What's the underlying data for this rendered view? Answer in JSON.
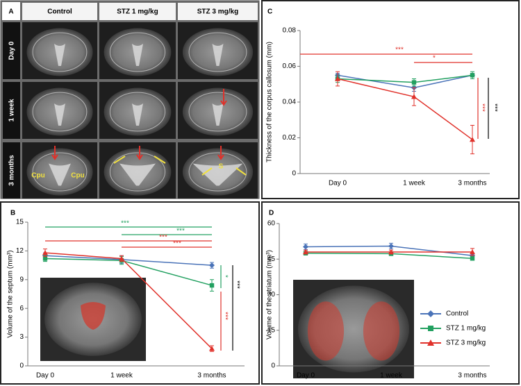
{
  "panel_a": {
    "panel": "A",
    "columns": [
      "Control",
      "STZ 1 mg/kg",
      "STZ 3 mg/kg"
    ],
    "rows": [
      "Day 0",
      "1 week",
      "3 months"
    ],
    "labels": [
      "Cpu",
      "Cpu",
      "S"
    ]
  },
  "chart_data": [
    {
      "panel": "C",
      "type": "line",
      "y_label": "Thickness of the corpus callosum (mm)",
      "categories": [
        "Day 0",
        "1 week",
        "3 months"
      ],
      "ylim": [
        0,
        0.08
      ],
      "yticks": [
        0,
        0.02,
        0.04,
        0.06,
        0.08
      ],
      "series": [
        {
          "name": "Control",
          "color": "#4a73b8",
          "marker": "diamond",
          "values": [
            0.055,
            0.048,
            0.055
          ],
          "errors": [
            0.001,
            0.002,
            0.001
          ]
        },
        {
          "name": "STZ 1 mg/kg",
          "color": "#22a060",
          "marker": "square",
          "values": [
            0.053,
            0.051,
            0.055
          ],
          "errors": [
            0.002,
            0.002,
            0.002
          ]
        },
        {
          "name": "STZ 3 mg/kg",
          "color": "#e0312a",
          "marker": "triangle",
          "values": [
            0.053,
            0.043,
            0.019
          ],
          "errors": [
            0.004,
            0.005,
            0.008
          ]
        }
      ],
      "annotations": [
        {
          "text": "***",
          "color": "#e0312a"
        },
        {
          "text": "*",
          "color": "#e0312a"
        },
        {
          "text": "***",
          "color": "#e0312a"
        },
        {
          "text": "***",
          "color": "#000000"
        }
      ]
    },
    {
      "panel": "B",
      "type": "line",
      "y_label": "Volume of the septum (mm³)",
      "categories": [
        "Day 0",
        "1 week",
        "3 months"
      ],
      "ylim": [
        0,
        15
      ],
      "yticks": [
        0,
        3,
        6,
        9,
        12,
        15
      ],
      "series": [
        {
          "name": "Control",
          "color": "#4a73b8",
          "marker": "diamond",
          "values": [
            11.5,
            11.1,
            10.5
          ],
          "errors": [
            0.3,
            0.4,
            0.3
          ]
        },
        {
          "name": "STZ 1 mg/kg",
          "color": "#22a060",
          "marker": "square",
          "values": [
            11.2,
            11.0,
            8.4
          ],
          "errors": [
            0.3,
            0.4,
            0.6
          ]
        },
        {
          "name": "STZ 3 mg/kg",
          "color": "#e0312a",
          "marker": "triangle",
          "values": [
            11.8,
            11.2,
            1.8
          ],
          "errors": [
            0.4,
            0.3,
            0.3
          ]
        }
      ],
      "annotations": [
        {
          "text": "***",
          "color": "#22a060"
        },
        {
          "text": "***",
          "color": "#22a060"
        },
        {
          "text": "***",
          "color": "#e0312a"
        },
        {
          "text": "***",
          "color": "#e0312a"
        },
        {
          "text": "*",
          "color": "#22a060"
        },
        {
          "text": "***",
          "color": "#e0312a"
        },
        {
          "text": "***",
          "color": "#000000"
        }
      ]
    },
    {
      "panel": "D",
      "type": "line",
      "y_label": "Volume of the striatum (mm³)",
      "categories": [
        "Day 0",
        "1 week",
        "3 months"
      ],
      "ylim": [
        0,
        60
      ],
      "yticks": [
        0,
        15,
        30,
        45,
        60
      ],
      "legend": "lower right",
      "series": [
        {
          "name": "Control",
          "color": "#4a73b8",
          "marker": "diamond",
          "values": [
            50.2,
            50.5,
            46.5
          ],
          "errors": [
            1.2,
            1.2,
            1.2
          ]
        },
        {
          "name": "STZ 1 mg/kg",
          "color": "#22a060",
          "marker": "square",
          "values": [
            47.5,
            47.3,
            45.3
          ],
          "errors": [
            0.8,
            0.8,
            0.8
          ]
        },
        {
          "name": "STZ 3 mg/kg",
          "color": "#e0312a",
          "marker": "triangle",
          "values": [
            48,
            48,
            48
          ],
          "errors": [
            0.8,
            0.8,
            1.5
          ]
        }
      ]
    }
  ]
}
